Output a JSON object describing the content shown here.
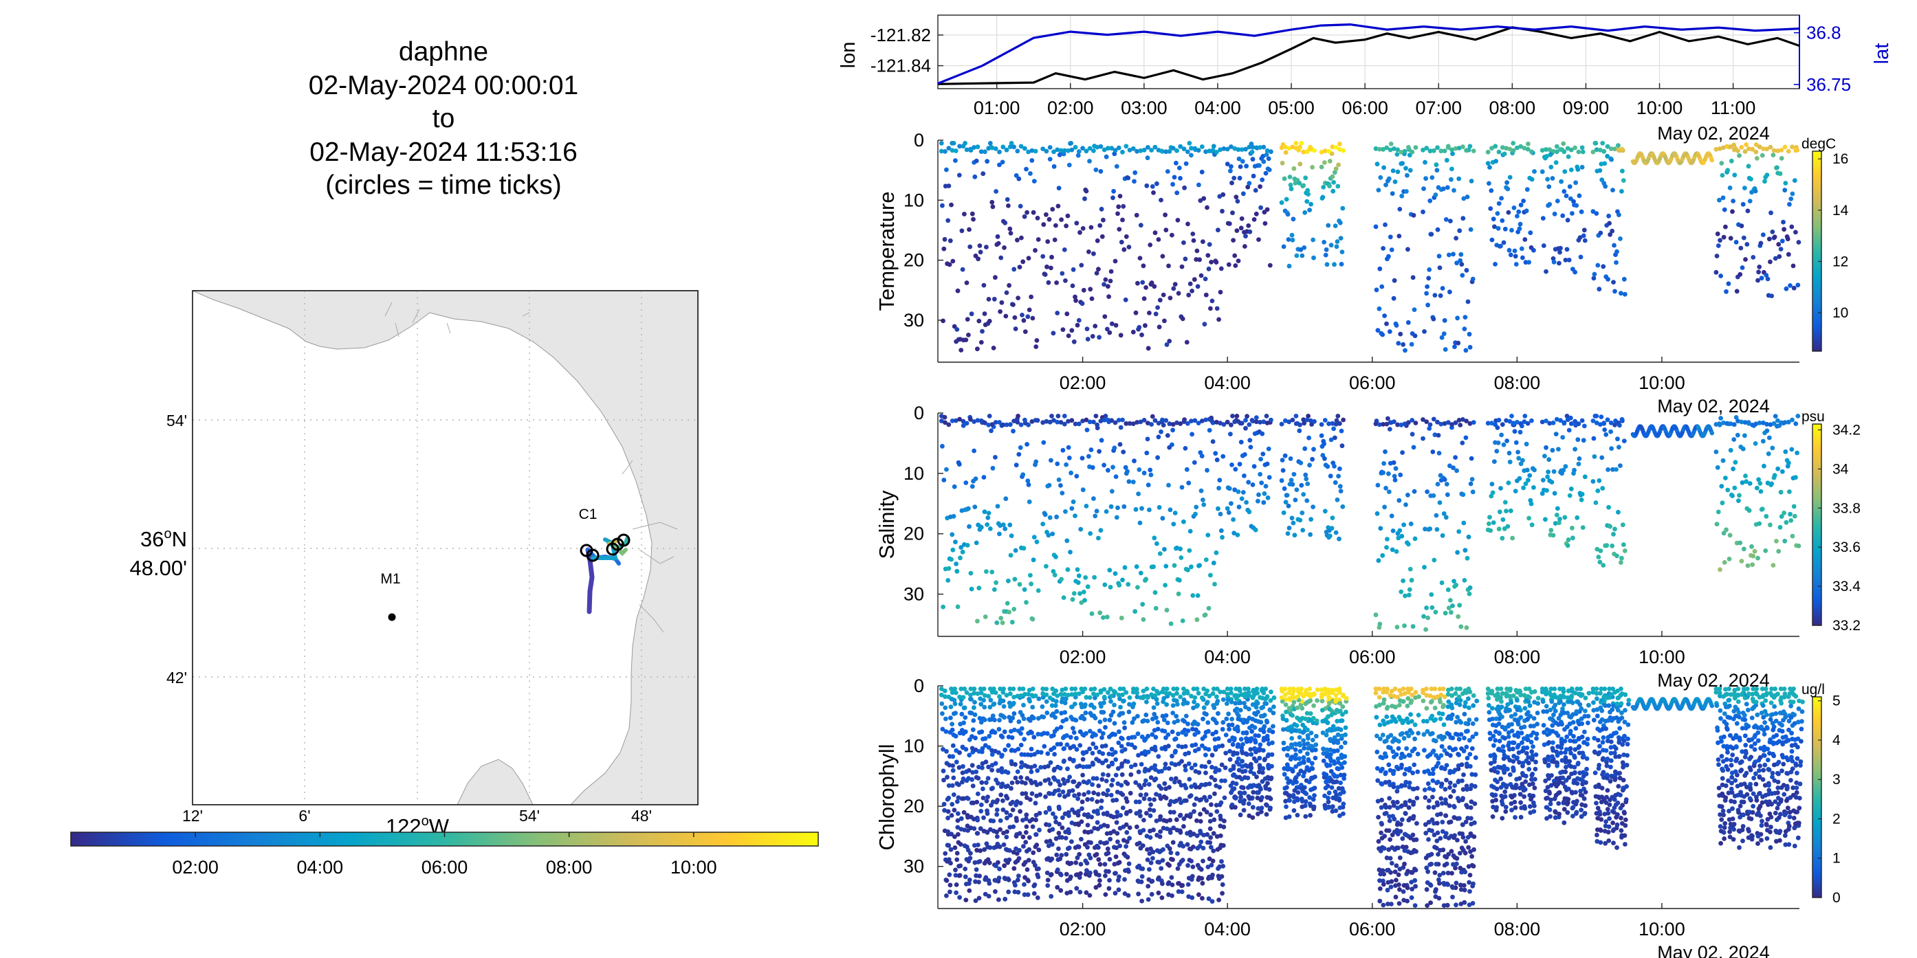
{
  "header": {
    "vehicle": "daphne",
    "start": "02-May-2024 00:00:01",
    "to": "to",
    "end": "02-May-2024 11:53:16",
    "note": "(circles = time ticks)"
  },
  "colors": {
    "track_lon": "#000000",
    "track_lat": "#0000cc",
    "land": "#e6e6e6",
    "grid": "#c8c8c8",
    "parula": [
      "#352a87",
      "#0f5cdd",
      "#1481d6",
      "#06a4ca",
      "#2eb7a4",
      "#87bf77",
      "#d1bb59",
      "#fec832",
      "#f9fb0e"
    ]
  },
  "chart_data": [
    {
      "type": "line",
      "name": "position-timeseries",
      "x_unit": "hours after 00:00 on 02-May-2024",
      "xlim": [
        0.2,
        11.9
      ],
      "x_ticks": [
        "01:00",
        "02:00",
        "03:00",
        "04:00",
        "05:00",
        "06:00",
        "07:00",
        "08:00",
        "09:00",
        "10:00",
        "11:00"
      ],
      "x_caption": "May 02, 2024",
      "left_axis": {
        "label": "lon",
        "ylim": [
          -121.855,
          -121.807
        ],
        "ticks": [
          "-121.82",
          "-121.84"
        ]
      },
      "right_axis": {
        "label": "lat",
        "ylim": [
          36.746,
          36.817
        ],
        "ticks": [
          "36.8",
          "36.75"
        ]
      },
      "series": [
        {
          "axis": "left",
          "values": [
            [
              0.2,
              -121.852
            ],
            [
              1.5,
              -121.851
            ],
            [
              1.8,
              -121.845
            ],
            [
              2.2,
              -121.849
            ],
            [
              2.6,
              -121.844
            ],
            [
              3.0,
              -121.848
            ],
            [
              3.4,
              -121.843
            ],
            [
              3.8,
              -121.849
            ],
            [
              4.2,
              -121.845
            ],
            [
              4.6,
              -121.838
            ],
            [
              5.0,
              -121.829
            ],
            [
              5.3,
              -121.822
            ],
            [
              5.6,
              -121.825
            ],
            [
              6.0,
              -121.823
            ],
            [
              6.3,
              -121.819
            ],
            [
              6.6,
              -121.822
            ],
            [
              7.0,
              -121.818
            ],
            [
              7.5,
              -121.823
            ],
            [
              8.0,
              -121.815
            ],
            [
              8.4,
              -121.818
            ],
            [
              8.8,
              -121.822
            ],
            [
              9.2,
              -121.819
            ],
            [
              9.6,
              -121.824
            ],
            [
              10.0,
              -121.818
            ],
            [
              10.4,
              -121.824
            ],
            [
              10.8,
              -121.821
            ],
            [
              11.2,
              -121.826
            ],
            [
              11.6,
              -121.822
            ],
            [
              11.9,
              -121.827
            ]
          ]
        },
        {
          "axis": "right",
          "values": [
            [
              0.2,
              36.751
            ],
            [
              0.8,
              36.768
            ],
            [
              1.5,
              36.795
            ],
            [
              2.0,
              36.801
            ],
            [
              2.5,
              36.798
            ],
            [
              3.0,
              36.801
            ],
            [
              3.5,
              36.797
            ],
            [
              4.0,
              36.801
            ],
            [
              4.5,
              36.797
            ],
            [
              5.0,
              36.803
            ],
            [
              5.4,
              36.807
            ],
            [
              5.8,
              36.808
            ],
            [
              6.3,
              36.803
            ],
            [
              6.8,
              36.806
            ],
            [
              7.3,
              36.803
            ],
            [
              7.8,
              36.806
            ],
            [
              8.3,
              36.803
            ],
            [
              8.8,
              36.806
            ],
            [
              9.3,
              36.802
            ],
            [
              9.8,
              36.806
            ],
            [
              10.3,
              36.803
            ],
            [
              10.8,
              36.805
            ],
            [
              11.3,
              36.802
            ],
            [
              11.9,
              36.804
            ]
          ]
        }
      ]
    },
    {
      "type": "scatter",
      "name": "Temperature",
      "ylabel": "Temperature",
      "ylim": [
        0,
        37
      ],
      "y_reversed": true,
      "y_ticks": [
        0,
        10,
        20,
        30
      ],
      "x_ticks": [
        "02:00",
        "04:00",
        "06:00",
        "08:00",
        "10:00"
      ],
      "x_caption": "May 02, 2024",
      "colorbar": {
        "unit": "degC",
        "range": [
          8.5,
          16.3
        ],
        "ticks": [
          "16",
          "14",
          "12",
          "10"
        ]
      }
    },
    {
      "type": "scatter",
      "name": "Salinity",
      "ylabel": "Salinity",
      "ylim": [
        0,
        37
      ],
      "y_reversed": true,
      "y_ticks": [
        0,
        10,
        20,
        30
      ],
      "x_ticks": [
        "02:00",
        "04:00",
        "06:00",
        "08:00",
        "10:00"
      ],
      "x_caption": "May 02, 2024",
      "colorbar": {
        "unit": "psu",
        "range": [
          33.2,
          34.23
        ],
        "ticks": [
          "34.2",
          "34",
          "33.8",
          "33.6",
          "33.4",
          "33.2"
        ]
      }
    },
    {
      "type": "scatter",
      "name": "Chlorophyll",
      "ylabel": "Chlorophyll",
      "ylim": [
        0,
        37
      ],
      "y_reversed": true,
      "y_ticks": [
        0,
        10,
        20,
        30
      ],
      "x_ticks": [
        "02:00",
        "04:00",
        "06:00",
        "08:00",
        "10:00"
      ],
      "x_caption": "May 02, 2024",
      "colorbar": {
        "unit": "ug/l",
        "range": [
          0,
          5.1
        ],
        "ticks": [
          "5",
          "4",
          "3",
          "2",
          "1",
          "0"
        ]
      }
    }
  ],
  "map": {
    "lat_ticks": [
      "54'",
      "36°N 48.00'",
      "42'"
    ],
    "lon_ticks": [
      "12'",
      "6'",
      "122°W",
      "54'",
      "48'"
    ],
    "lat_degree_label": "36",
    "lat_hemisphere": "N",
    "lat_minutes_label": "48.00'",
    "lon_degree_label": "122",
    "lon_hemisphere": "W",
    "stations": [
      {
        "name": "M1"
      },
      {
        "name": "C1"
      }
    ],
    "time_colorbar": {
      "ticks": [
        "02:00",
        "04:00",
        "06:00",
        "08:00",
        "10:00"
      ]
    }
  }
}
